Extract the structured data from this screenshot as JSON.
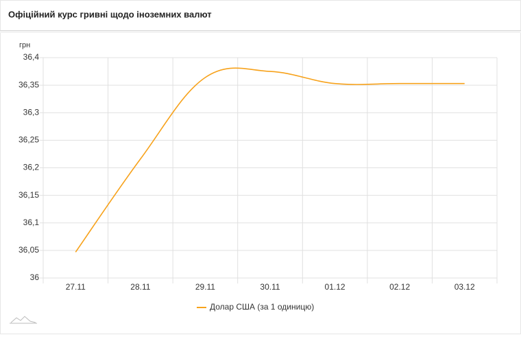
{
  "chart_data": {
    "type": "line",
    "title": "Офіційний курс гривні щодо іноземних валют",
    "y_label": "грн",
    "categories": [
      "27.11",
      "28.11",
      "29.11",
      "30.11",
      "01.12",
      "02.12",
      "03.12"
    ],
    "series": [
      {
        "name": "Долар США (за 1 одиницю)",
        "color": "#f7a21b",
        "values": [
          36.047,
          36.216,
          36.364,
          36.375,
          36.353,
          36.353,
          36.353
        ]
      }
    ],
    "ylim": [
      36,
      36.4
    ],
    "yticks": [
      36,
      {
        "value": 36.05,
        "label": "36,05"
      },
      {
        "value": 36.1,
        "label": "36,1"
      },
      {
        "value": 36.15,
        "label": "36,15"
      },
      {
        "value": 36.2,
        "label": "36,2"
      },
      {
        "value": 36.25,
        "label": "36,25"
      },
      {
        "value": 36.3,
        "label": "36,3"
      },
      {
        "value": 36.35,
        "label": "36,35"
      },
      {
        "value": 36.4,
        "label": "36,4"
      }
    ],
    "grid": true
  }
}
